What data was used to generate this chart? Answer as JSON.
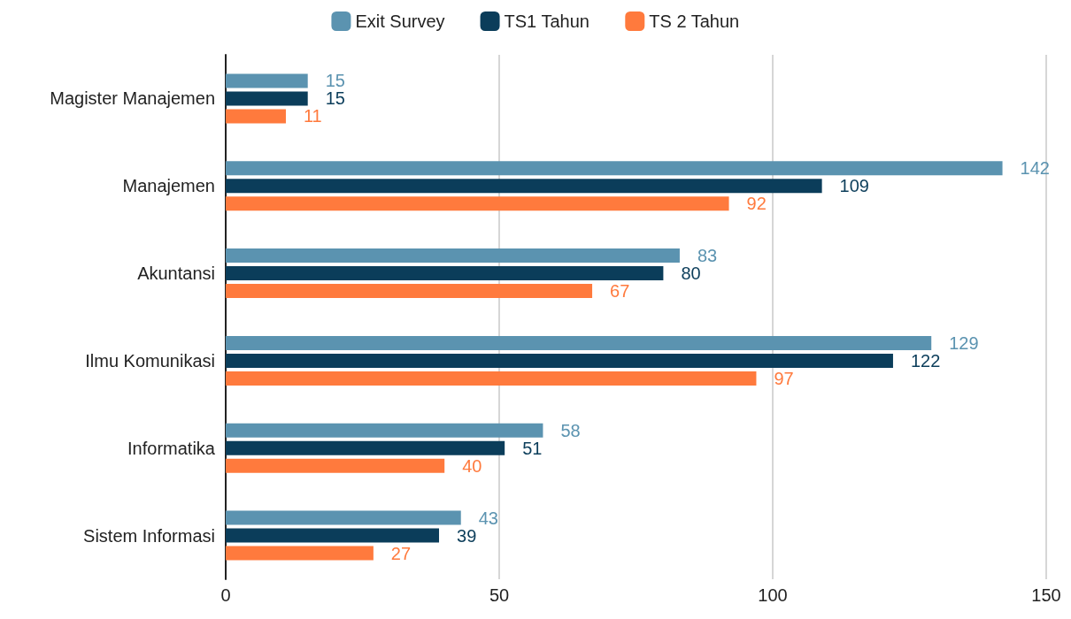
{
  "chart_data": {
    "type": "bar",
    "orientation": "horizontal",
    "categories": [
      "Magister Manajemen",
      "Manajemen",
      "Akuntansi",
      "Ilmu Komunikasi",
      "Informatika",
      "Sistem Informasi"
    ],
    "series": [
      {
        "name": "Exit Survey",
        "color": "#5b93b0",
        "values": [
          15,
          142,
          83,
          129,
          58,
          43
        ]
      },
      {
        "name": "TS1 Tahun",
        "color": "#0b3d5a",
        "values": [
          15,
          109,
          80,
          122,
          51,
          39
        ]
      },
      {
        "name": "TS 2 Tahun",
        "color": "#ff7a3d",
        "values": [
          11,
          92,
          67,
          97,
          40,
          27
        ]
      }
    ],
    "xlim": [
      0,
      150
    ],
    "xticks": [
      0,
      50,
      100,
      150
    ],
    "grid": "x",
    "legend": "top",
    "data_labels": true
  }
}
